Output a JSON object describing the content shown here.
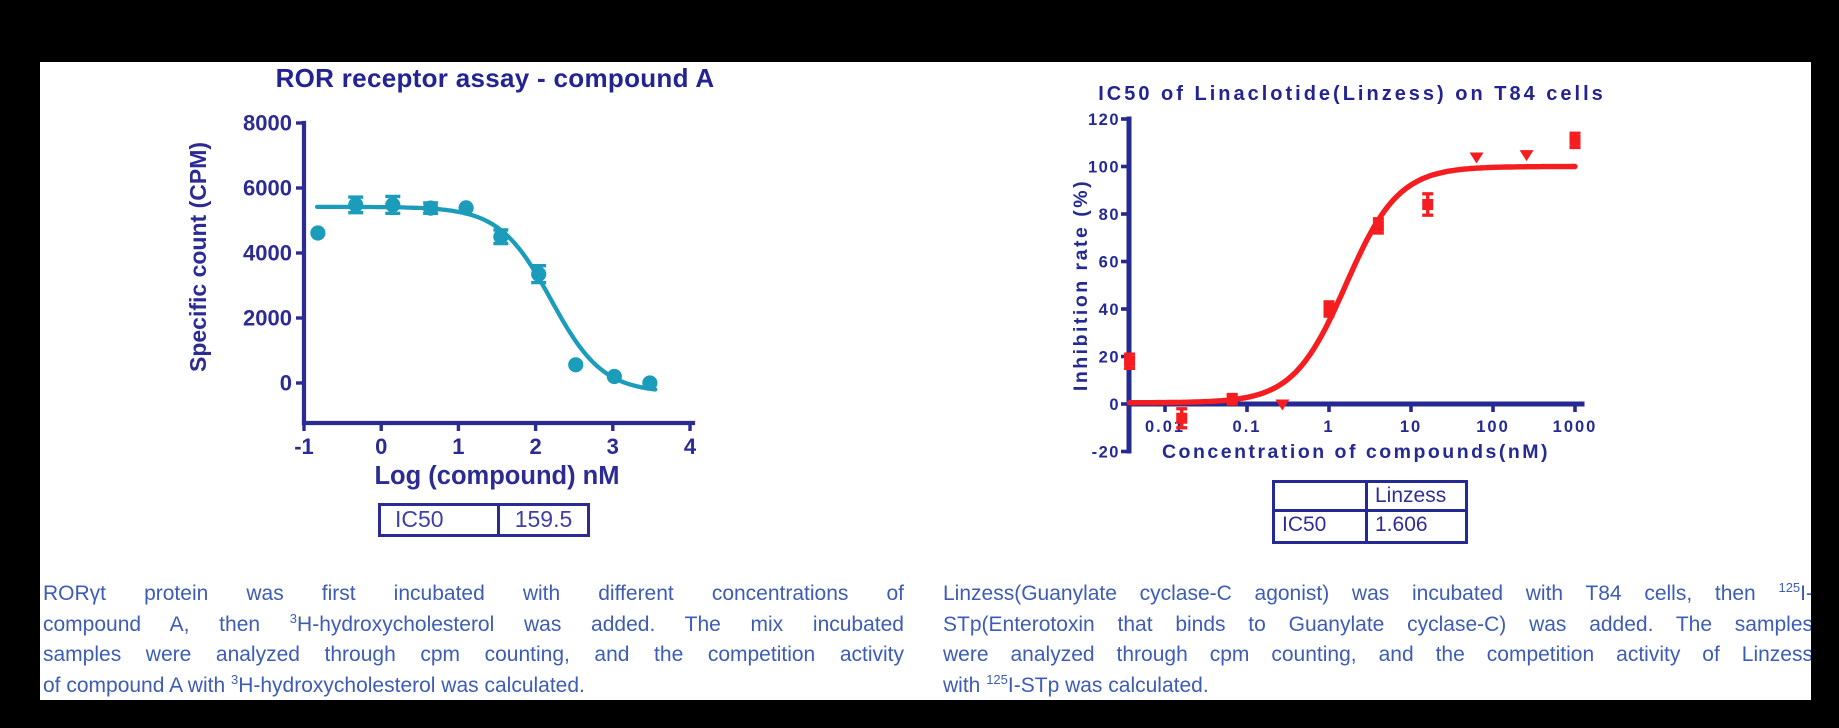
{
  "background": "#000000",
  "panel_background": "#ffffff",
  "colors": {
    "navy_axis": "#2b2b93",
    "navy_axis_right": "#242a92",
    "teal_series": "#1b9cba",
    "red_series": "#f51d20",
    "title_navy": "#232391",
    "caption_blue": "#3d5cb5"
  },
  "chart_data": [
    {
      "type": "scatter",
      "title": "ROR receptor assay - compound A",
      "xlabel": "Log (compound) nM",
      "ylabel": "Specific count (CPM)",
      "x_scale": "linear",
      "xlim": [
        -1,
        4
      ],
      "ylim": [
        0,
        8000
      ],
      "x_ticks": [
        -1,
        0,
        1,
        2,
        3,
        4
      ],
      "y_ticks": [
        0,
        2000,
        4000,
        6000,
        8000
      ],
      "grid": false,
      "legend": "none",
      "color": "#1b9cba",
      "axis_color": "#2b2b93",
      "points": [
        {
          "x": -0.82,
          "y": 4615,
          "marker": "circle"
        },
        {
          "x": -0.33,
          "y": 5480,
          "err": 240,
          "marker": "circle"
        },
        {
          "x": 0.15,
          "y": 5480,
          "err": 260,
          "marker": "circle"
        },
        {
          "x": 0.64,
          "y": 5380,
          "err": 160,
          "marker": "circle"
        },
        {
          "x": 1.1,
          "y": 5390,
          "marker": "circle"
        },
        {
          "x": 1.55,
          "y": 4500,
          "err": 210,
          "marker": "circle"
        },
        {
          "x": 2.04,
          "y": 3350,
          "err": 260,
          "marker": "circle"
        },
        {
          "x": 2.52,
          "y": 560,
          "marker": "circle"
        },
        {
          "x": 3.02,
          "y": 200,
          "marker": "circle"
        },
        {
          "x": 3.48,
          "y": 0,
          "marker": "circle"
        }
      ],
      "fit_curve": {
        "top": 5420,
        "bottom": -300,
        "mid": 2.2,
        "hill": -1.3,
        "range": [
          -0.83,
          3.55
        ]
      },
      "result_table": [
        [
          "IC50",
          "159.5"
        ]
      ]
    },
    {
      "type": "scatter",
      "title": "IC50 of Linaclotide(Linzess) on T84 cells",
      "xlabel": "Concentration of compounds(nM)",
      "ylabel": "Inhibition rate (%)",
      "x_scale": "log",
      "xlim": [
        0.0037,
        1000
      ],
      "ylim": [
        -20,
        120
      ],
      "x_ticks": [
        0.01,
        0.1,
        1,
        10,
        100,
        1000
      ],
      "y_ticks": [
        -20,
        0,
        20,
        40,
        60,
        80,
        100,
        120
      ],
      "grid": false,
      "legend": "none",
      "color": "#f51d20",
      "axis_color": "#242a92",
      "points": [
        {
          "x": 0.0037,
          "y": 18,
          "err": 3,
          "marker": "square"
        },
        {
          "x": 0.016,
          "y": -6,
          "err": 4,
          "marker": "square"
        },
        {
          "x": 0.066,
          "y": 2,
          "err": 2,
          "marker": "square"
        },
        {
          "x": 0.27,
          "y": 0,
          "marker": "triangle"
        },
        {
          "x": 1,
          "y": 40,
          "err": 3,
          "marker": "square"
        },
        {
          "x": 4,
          "y": 75,
          "err": 3,
          "marker": "square"
        },
        {
          "x": 16,
          "y": 84,
          "err": 4.5,
          "marker": "square"
        },
        {
          "x": 63,
          "y": 104,
          "marker": "triangle"
        },
        {
          "x": 257,
          "y": 105,
          "marker": "triangle"
        },
        {
          "x": 1000,
          "y": 111,
          "err": 3,
          "marker": "square"
        }
      ],
      "fit_curve": {
        "top": 100,
        "bottom": 0.5,
        "mid": 0.206,
        "hill": 1.35,
        "range": [
          -2.43,
          3.0
        ]
      },
      "result_table": [
        [
          "",
          "Linzess"
        ],
        [
          "IC50",
          "1.606"
        ]
      ]
    }
  ],
  "captions": {
    "left": {
      "lines": [
        [
          {
            "t": "RORγt protein was first incubated with different concentrations of"
          }
        ],
        [
          {
            "t": "compound A, then "
          },
          {
            "sup": "3"
          },
          {
            "t": "H-hydroxycholesterol was added. The mix incubated"
          }
        ],
        [
          {
            "t": "samples were analyzed through cpm counting, and the competition activity"
          }
        ],
        [
          {
            "t": "of compound A with "
          },
          {
            "sup": "3"
          },
          {
            "t": "H-hydroxycholesterol was calculated."
          }
        ]
      ]
    },
    "right": {
      "lines": [
        [
          {
            "t": "Linzess(Guanylate cyclase-C agonist) was incubated with T84 cells, then "
          },
          {
            "sup": "125"
          },
          {
            "t": "I-"
          }
        ],
        [
          {
            "t": "STp(Enterotoxin that binds to Guanylate cyclase-C) was added. The samples"
          }
        ],
        [
          {
            "t": "were analyzed through cpm counting, and the competition activity of Linzess"
          }
        ],
        [
          {
            "t": "with "
          },
          {
            "sup": "125"
          },
          {
            "t": "I-STp was calculated."
          }
        ]
      ]
    }
  }
}
